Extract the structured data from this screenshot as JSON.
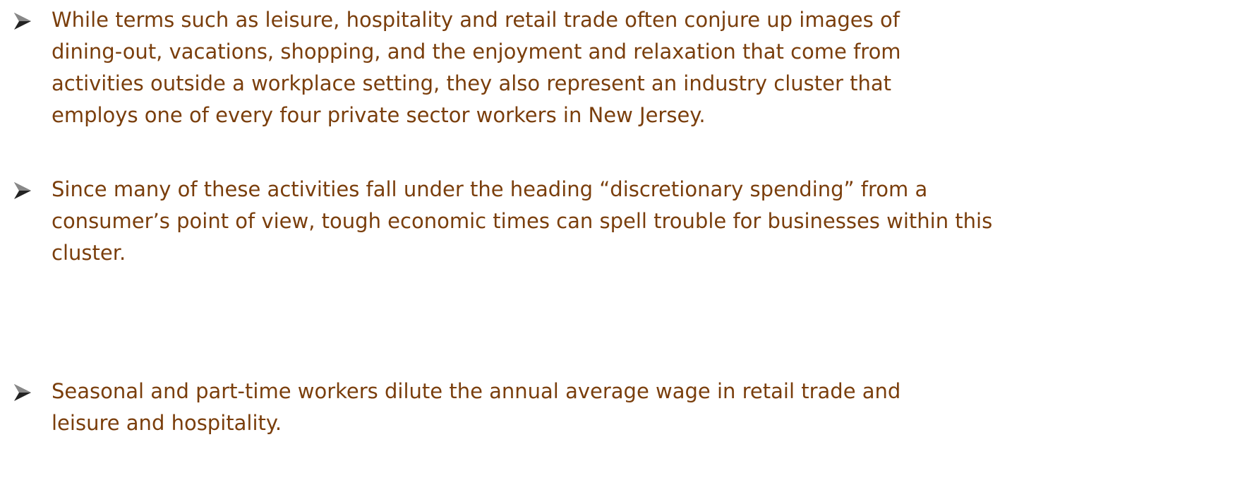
{
  "bullets": [
    {
      "lines": [
        "While terms such as leisure, hospitality and retail trade often conjure up images of",
        "dining-out, vacations, shopping, and the enjoyment and relaxation that come from",
        "activities outside a workplace setting, they also represent an industry cluster that",
        "employs one of every four private sector workers in New Jersey."
      ]
    },
    {
      "lines": [
        "Since many of these activities fall under the heading “discretionary spending” from a",
        "consumer’s point of view, tough economic times can spell trouble for businesses within this",
        "cluster."
      ]
    },
    {
      "lines": [
        "Seasonal and part-time workers dilute the annual average wage in retail trade and",
        "leisure and hospitality."
      ]
    }
  ]
}
